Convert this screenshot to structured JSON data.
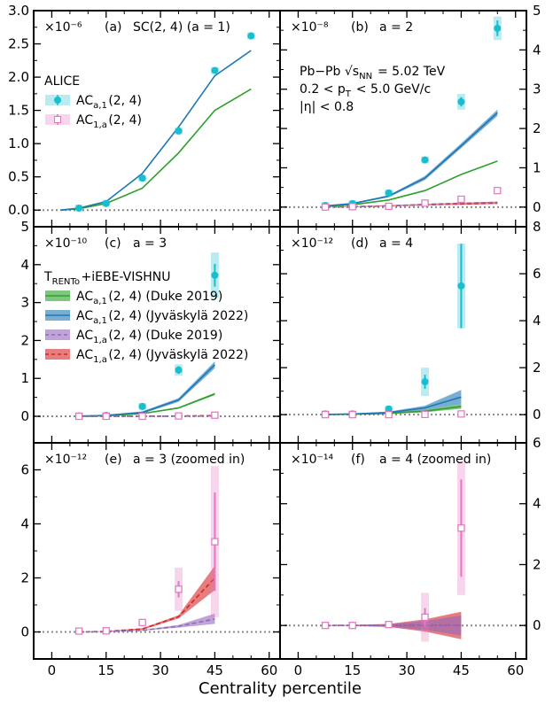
{
  "figure": {
    "xlabel": "Centrality percentile",
    "xticks": [
      0,
      15,
      30,
      45,
      60
    ],
    "xlim": [
      -5,
      63
    ]
  },
  "chart_data": [
    {
      "type": "line",
      "id": "a",
      "panel_label": "(a)",
      "title": "SC(2, 4) (a = 1)",
      "exponent": "×10⁻⁶",
      "ylim": [
        -0.25,
        3.0
      ],
      "yticks": [
        0.0,
        0.5,
        1.0,
        1.5,
        2.0,
        2.5,
        3.0
      ],
      "ytick_labels": [
        "0.0",
        "0.5",
        "1.0",
        "1.5",
        "2.0",
        "2.5",
        "3.0"
      ],
      "yaxis_side": "left",
      "show_xlabels": false,
      "zero_line": true,
      "legend": {
        "title": "ALICE",
        "entries": [
          {
            "label": "AC_{a,1}(2, 4)",
            "marker": "dot",
            "color": "#17becf"
          },
          {
            "label": "AC_{1,a}(2, 4)",
            "marker": "square",
            "color": "#e377c2"
          }
        ]
      },
      "bands": [],
      "lines": [
        {
          "name": "model green",
          "color": "#2ca02c",
          "x": [
            2.5,
            7.5,
            15,
            25,
            35,
            45,
            55
          ],
          "y": [
            0.0,
            0.02,
            0.1,
            0.33,
            0.86,
            1.5,
            1.82
          ]
        },
        {
          "name": "model blue",
          "color": "#1f77b4",
          "x": [
            2.5,
            7.5,
            15,
            25,
            35,
            45,
            55
          ],
          "y": [
            0.0,
            0.03,
            0.13,
            0.55,
            1.25,
            2.02,
            2.4
          ]
        }
      ],
      "points": [
        {
          "name": "ALICE AC_{a,1}(2, 4)",
          "kind": "dot",
          "color": "#17becf",
          "x": [
            7.5,
            15,
            25,
            35,
            45,
            55
          ],
          "y": [
            0.03,
            0.1,
            0.48,
            1.19,
            2.1,
            2.62
          ],
          "err": [
            0.005,
            0.01,
            0.02,
            0.03,
            0.04,
            0.05
          ],
          "sys": [
            0.005,
            0.01,
            0.02,
            0.03,
            0.04,
            0.05
          ]
        }
      ]
    },
    {
      "type": "line",
      "id": "b",
      "panel_label": "(b)",
      "title": "a = 2",
      "exponent": "×10⁻⁸",
      "ylim": [
        -0.5,
        5.0
      ],
      "yticks": [
        0,
        1,
        2,
        3,
        4,
        5
      ],
      "ytick_labels": [
        "0",
        "1",
        "2",
        "3",
        "4",
        "5"
      ],
      "yaxis_side": "right",
      "show_xlabels": false,
      "zero_line": true,
      "annotation": [
        "Pb−Pb √s_NN = 5.02 TeV",
        "0.2 < p_T < 5.0 GeV/c",
        "|η| < 0.8"
      ],
      "bands": [
        {
          "name": "blue band",
          "color": "#1f77b4",
          "x": [
            7.5,
            15,
            25,
            35,
            45,
            55
          ],
          "low": [
            0.02,
            0.07,
            0.25,
            0.69,
            1.5,
            2.32
          ],
          "high": [
            0.04,
            0.1,
            0.3,
            0.79,
            1.62,
            2.48
          ]
        },
        {
          "name": "red band",
          "color": "#d62728",
          "x": [
            7.5,
            15,
            25,
            35,
            45,
            55
          ],
          "low": [
            0.0,
            0.0,
            0.02,
            0.04,
            0.06,
            0.08
          ],
          "high": [
            0.01,
            0.02,
            0.05,
            0.08,
            0.11,
            0.14
          ]
        }
      ],
      "lines": [
        {
          "name": "green",
          "color": "#2ca02c",
          "x": [
            7.5,
            15,
            25,
            35,
            45,
            55
          ],
          "y": [
            0.02,
            0.06,
            0.18,
            0.42,
            0.83,
            1.17
          ]
        },
        {
          "name": "blue",
          "color": "#1f77b4",
          "x": [
            7.5,
            15,
            25,
            35,
            45,
            55
          ],
          "y": [
            0.03,
            0.09,
            0.28,
            0.74,
            1.56,
            2.4
          ]
        },
        {
          "name": "red dashed",
          "color": "#d62728",
          "dashed": true,
          "x": [
            7.5,
            15,
            25,
            35,
            45,
            55
          ],
          "y": [
            0.0,
            0.01,
            0.03,
            0.06,
            0.08,
            0.1
          ]
        },
        {
          "name": "purple dashed",
          "color": "#9467bd",
          "dashed": true,
          "x": [
            7.5,
            15,
            25,
            35,
            45,
            55
          ],
          "y": [
            0.0,
            0.01,
            0.03,
            0.07,
            0.1,
            0.12
          ]
        }
      ],
      "points": [
        {
          "name": "ALICE AC_{a,1}(2, 4)",
          "kind": "dot",
          "color": "#17becf",
          "x": [
            7.5,
            15,
            25,
            35,
            45,
            55
          ],
          "y": [
            0.04,
            0.09,
            0.36,
            1.2,
            2.68,
            4.55
          ],
          "err": [
            0.01,
            0.02,
            0.03,
            0.06,
            0.12,
            0.2
          ],
          "sys": [
            0.01,
            0.02,
            0.05,
            0.08,
            0.2,
            0.3
          ]
        },
        {
          "name": "ALICE AC_{1,a}(2, 4)",
          "kind": "square",
          "color": "#e377c2",
          "x": [
            7.5,
            15,
            25,
            35,
            45,
            55
          ],
          "y": [
            0.0,
            0.01,
            0.02,
            0.1,
            0.2,
            0.42
          ],
          "err": [
            0.005,
            0.005,
            0.01,
            0.02,
            0.03,
            0.04
          ],
          "sys": [
            0.005,
            0.005,
            0.01,
            0.02,
            0.03,
            0.04
          ]
        }
      ]
    },
    {
      "type": "line",
      "id": "c",
      "panel_label": "(c)",
      "title": "a = 3",
      "exponent": "×10⁻¹⁰",
      "ylim": [
        -0.7,
        5.0
      ],
      "yticks": [
        0,
        1,
        2,
        3,
        4,
        5
      ],
      "ytick_labels": [
        "0",
        "1",
        "2",
        "3",
        "4",
        "5"
      ],
      "yaxis_side": "left",
      "show_xlabels": false,
      "zero_line": true,
      "legend": {
        "title": "T_RENTo+iEBE-VISHNU",
        "entries": [
          {
            "label": "AC_{a,1}(2, 4) (Duke 2019)",
            "marker": "line",
            "color": "#2ca02c"
          },
          {
            "label": "AC_{a,1}(2, 4) (Jyväskylä 2022)",
            "marker": "line",
            "color": "#1f77b4"
          },
          {
            "label": "AC_{1,a}(2, 4) (Duke 2019)",
            "marker": "dash",
            "color": "#9467bd"
          },
          {
            "label": "AC_{1,a}(2, 4) (Jyväskylä 2022)",
            "marker": "dash",
            "color": "#d62728"
          }
        ]
      },
      "bands": [
        {
          "name": "blue band",
          "color": "#1f77b4",
          "x": [
            7.5,
            15,
            25,
            35,
            45
          ],
          "low": [
            0.0,
            0.01,
            0.07,
            0.38,
            1.27
          ],
          "high": [
            0.01,
            0.04,
            0.13,
            0.48,
            1.45
          ]
        },
        {
          "name": "green band",
          "color": "#2ca02c",
          "x": [
            7.5,
            15,
            25,
            35,
            45
          ],
          "low": [
            0.0,
            0.01,
            0.06,
            0.2,
            0.56
          ],
          "high": [
            0.0,
            0.02,
            0.08,
            0.24,
            0.62
          ]
        }
      ],
      "lines": [
        {
          "name": "green",
          "color": "#2ca02c",
          "x": [
            7.5,
            15,
            25,
            35,
            45
          ],
          "y": [
            0.0,
            0.015,
            0.07,
            0.22,
            0.59
          ]
        },
        {
          "name": "blue",
          "color": "#1f77b4",
          "x": [
            7.5,
            15,
            25,
            35,
            45
          ],
          "y": [
            0.005,
            0.025,
            0.1,
            0.43,
            1.36
          ]
        },
        {
          "name": "red dashed",
          "color": "#d62728",
          "dashed": true,
          "x": [
            7.5,
            15,
            25,
            35,
            45
          ],
          "y": [
            0.0,
            0.0,
            0.003,
            0.008,
            0.02
          ]
        },
        {
          "name": "purple dashed",
          "color": "#9467bd",
          "dashed": true,
          "x": [
            7.5,
            15,
            25,
            35,
            45
          ],
          "y": [
            0.0,
            0.0,
            0.002,
            0.004,
            0.01
          ]
        }
      ],
      "points": [
        {
          "name": "ALICE AC_{a,1}(2, 4)",
          "kind": "dot",
          "color": "#17becf",
          "x": [
            7.5,
            15,
            25,
            35,
            45
          ],
          "y": [
            0.01,
            0.02,
            0.26,
            1.22,
            3.72
          ],
          "err": [
            0.01,
            0.02,
            0.04,
            0.1,
            0.3
          ],
          "sys": [
            0.01,
            0.02,
            0.05,
            0.15,
            0.6
          ]
        },
        {
          "name": "ALICE AC_{1,a}(2, 4)",
          "kind": "square",
          "color": "#e377c2",
          "x": [
            7.5,
            15,
            25,
            35,
            45
          ],
          "y": [
            0.0,
            0.0,
            0.0,
            0.01,
            0.03
          ],
          "err": [
            0.003,
            0.003,
            0.005,
            0.01,
            0.02
          ],
          "sys": [
            0.003,
            0.003,
            0.005,
            0.01,
            0.02
          ]
        }
      ]
    },
    {
      "type": "line",
      "id": "d",
      "panel_label": "(d)",
      "title": "a = 4",
      "exponent": "×10⁻¹²",
      "ylim": [
        -1.2,
        8.0
      ],
      "yticks": [
        0,
        2,
        4,
        6,
        8
      ],
      "ytick_labels": [
        "0",
        "2",
        "4",
        "6",
        "8"
      ],
      "yaxis_side": "right",
      "show_xlabels": false,
      "zero_line": true,
      "bands": [
        {
          "name": "blue band",
          "color": "#1f77b4",
          "x": [
            7.5,
            15,
            25,
            35,
            45
          ],
          "low": [
            0.0,
            0.01,
            0.05,
            0.2,
            0.45
          ],
          "high": [
            0.02,
            0.05,
            0.13,
            0.38,
            1.05
          ]
        },
        {
          "name": "green band",
          "color": "#2ca02c",
          "x": [
            7.5,
            15,
            25,
            35,
            45
          ],
          "low": [
            0.0,
            0.0,
            0.03,
            0.1,
            0.25
          ],
          "high": [
            0.01,
            0.03,
            0.07,
            0.2,
            0.45
          ]
        }
      ],
      "lines": [
        {
          "name": "green",
          "color": "#2ca02c",
          "x": [
            7.5,
            15,
            25,
            35,
            45
          ],
          "y": [
            0.005,
            0.02,
            0.05,
            0.15,
            0.35
          ]
        },
        {
          "name": "blue",
          "color": "#1f77b4",
          "x": [
            7.5,
            15,
            25,
            35,
            45
          ],
          "y": [
            0.01,
            0.03,
            0.09,
            0.29,
            0.75
          ]
        }
      ],
      "points": [
        {
          "name": "ALICE AC_{a,1}(2, 4)",
          "kind": "dot",
          "color": "#17becf",
          "x": [
            7.5,
            15,
            25,
            35,
            45
          ],
          "y": [
            0.03,
            0.03,
            0.24,
            1.4,
            5.48
          ],
          "err": [
            0.01,
            0.02,
            0.05,
            0.3,
            1.8
          ],
          "sys": [
            0.02,
            0.03,
            0.1,
            0.6,
            1.8
          ]
        },
        {
          "name": "ALICE AC_{1,a}(2, 4)",
          "kind": "square",
          "color": "#e377c2",
          "x": [
            7.5,
            15,
            25,
            35,
            45
          ],
          "y": [
            0.0,
            0.0,
            0.0,
            0.01,
            0.03
          ],
          "err": [
            0.003,
            0.003,
            0.005,
            0.01,
            0.02
          ],
          "sys": [
            0.003,
            0.003,
            0.005,
            0.01,
            0.02
          ]
        }
      ]
    },
    {
      "type": "line",
      "id": "e",
      "panel_label": "(e)",
      "title": "a = 3 (zoomed in)",
      "exponent": "×10⁻¹²",
      "ylim": [
        -1.0,
        7.0
      ],
      "yticks": [
        0,
        2,
        4,
        6
      ],
      "ytick_labels": [
        "0",
        "2",
        "4",
        "6"
      ],
      "yaxis_side": "left",
      "show_xlabels": true,
      "zero_line": true,
      "bands": [
        {
          "name": "red band",
          "color": "#d62728",
          "x": [
            7.5,
            15,
            25,
            35,
            45
          ],
          "low": [
            0.0,
            0.01,
            0.08,
            0.5,
            1.55
          ],
          "high": [
            0.01,
            0.03,
            0.14,
            0.62,
            2.45
          ]
        },
        {
          "name": "purple band",
          "color": "#9467bd",
          "x": [
            7.5,
            15,
            25,
            35,
            45
          ],
          "low": [
            0.0,
            0.01,
            0.05,
            0.16,
            0.3
          ],
          "high": [
            0.01,
            0.02,
            0.08,
            0.26,
            0.68
          ]
        }
      ],
      "lines": [
        {
          "name": "red dashed",
          "color": "#d62728",
          "dashed": true,
          "x": [
            7.5,
            15,
            25,
            35,
            45
          ],
          "y": [
            0.0,
            0.02,
            0.11,
            0.56,
            2.0
          ]
        },
        {
          "name": "purple dashed",
          "color": "#9467bd",
          "dashed": true,
          "x": [
            7.5,
            15,
            25,
            35,
            45
          ],
          "y": [
            0.0,
            0.01,
            0.06,
            0.21,
            0.48
          ]
        }
      ],
      "points": [
        {
          "name": "ALICE AC_{1,a}(2, 4)",
          "kind": "square",
          "color": "#e377c2",
          "x": [
            7.5,
            15,
            25,
            35,
            45
          ],
          "y": [
            0.03,
            0.04,
            0.35,
            1.58,
            3.34
          ],
          "err": [
            0.02,
            0.03,
            0.05,
            0.3,
            1.82
          ],
          "sys": [
            0.02,
            0.03,
            0.07,
            0.8,
            2.8
          ]
        }
      ]
    },
    {
      "type": "line",
      "id": "f",
      "panel_label": "(f)",
      "title": "a = 4 (zoomed in)",
      "exponent": "×10⁻¹⁴",
      "ylim": [
        -1.1,
        6.0
      ],
      "yticks": [
        0,
        2,
        4,
        6
      ],
      "ytick_labels": [
        "0",
        "2",
        "4",
        "6"
      ],
      "yaxis_side": "right",
      "show_xlabels": true,
      "zero_line": true,
      "bands": [
        {
          "name": "red band",
          "color": "#d62728",
          "x": [
            7.5,
            15,
            25,
            35,
            45
          ],
          "low": [
            -0.01,
            -0.02,
            -0.05,
            -0.2,
            -0.45
          ],
          "high": [
            0.01,
            0.02,
            0.05,
            0.2,
            0.45
          ]
        },
        {
          "name": "purple band",
          "color": "#9467bd",
          "x": [
            7.5,
            15,
            25,
            35,
            45
          ],
          "low": [
            -0.01,
            -0.01,
            -0.04,
            -0.15,
            -0.33
          ],
          "high": [
            0.01,
            0.01,
            0.04,
            0.15,
            0.33
          ]
        }
      ],
      "lines": [
        {
          "name": "red dashed",
          "color": "#d62728",
          "dashed": true,
          "x": [
            7.5,
            15,
            25,
            35,
            45
          ],
          "y": [
            0.0,
            0.0,
            0.0,
            0.0,
            0.0
          ]
        },
        {
          "name": "purple dashed",
          "color": "#9467bd",
          "dashed": true,
          "x": [
            7.5,
            15,
            25,
            35,
            45
          ],
          "y": [
            0.0,
            0.0,
            0.0,
            0.0,
            0.0
          ]
        }
      ],
      "points": [
        {
          "name": "ALICE AC_{1,a}(2, 4)",
          "kind": "square",
          "color": "#e377c2",
          "x": [
            7.5,
            15,
            25,
            35,
            45
          ],
          "y": [
            0.0,
            0.0,
            0.03,
            0.27,
            3.2
          ],
          "err": [
            0.03,
            0.03,
            0.05,
            0.3,
            1.6
          ],
          "sys": [
            0.03,
            0.03,
            0.07,
            0.8,
            2.2
          ]
        }
      ]
    }
  ]
}
